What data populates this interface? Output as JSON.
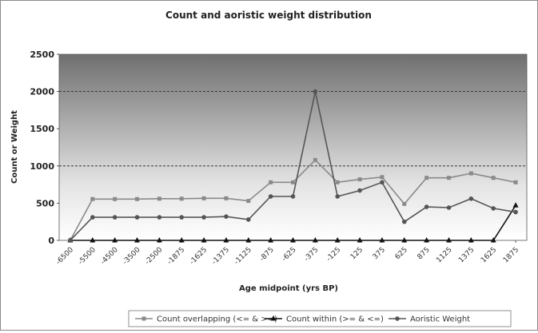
{
  "chart_data": {
    "type": "line",
    "title": "Count and aoristic weight distribution",
    "xlabel": "Age midpoint (yrs BP)",
    "ylabel": "Count or Weight",
    "ylim": [
      0,
      2500
    ],
    "yticks": [
      0,
      500,
      1000,
      1500,
      2000,
      2500
    ],
    "grid": "horizontal dashed at 1000 and 2000",
    "legend_position": "bottom",
    "categories": [
      "-6500",
      "-5500",
      "-4500",
      "-3500",
      "-2500",
      "-1875",
      "-1625",
      "-1375",
      "-1125",
      "-875",
      "-625",
      "-375",
      "-125",
      "125",
      "375",
      "625",
      "875",
      "1125",
      "1375",
      "1625",
      "1875"
    ],
    "series": [
      {
        "name": "Count overlapping (<= & >=)",
        "color": "#8a8a8a",
        "marker": "square",
        "values": [
          0,
          555,
          555,
          555,
          560,
          560,
          565,
          565,
          530,
          780,
          780,
          1080,
          780,
          820,
          850,
          490,
          840,
          840,
          900,
          840,
          780
        ]
      },
      {
        "name": "Count within (>= & <=)",
        "color": "#111111",
        "marker": "triangle",
        "values": [
          0,
          0,
          0,
          0,
          0,
          0,
          0,
          0,
          0,
          0,
          0,
          0,
          0,
          0,
          0,
          0,
          0,
          0,
          0,
          0,
          470
        ]
      },
      {
        "name": "Aoristic Weight",
        "color": "#555555",
        "marker": "circle",
        "values": [
          0,
          310,
          310,
          310,
          310,
          310,
          310,
          320,
          280,
          590,
          590,
          2000,
          590,
          670,
          780,
          250,
          450,
          440,
          560,
          430,
          380
        ]
      }
    ]
  }
}
